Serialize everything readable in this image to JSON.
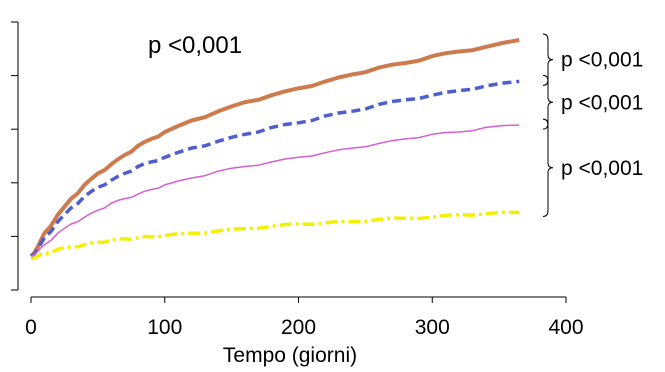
{
  "chart_data": {
    "type": "line",
    "title": "",
    "xlabel": "Tempo (giorni)",
    "ylabel": "",
    "xlim": [
      0,
      400
    ],
    "ylim": [
      0,
      1
    ],
    "x_ticks": [
      0,
      100,
      200,
      300,
      400
    ],
    "x_tick_labels": [
      "0",
      "100",
      "200",
      "300",
      "400"
    ],
    "y_ticks": [
      0,
      0.2,
      0.4,
      0.6,
      0.8,
      1.0
    ],
    "y_tick_labels_visible": false,
    "grid": false,
    "legend": "none",
    "series": [
      {
        "color": "#cd7a4d",
        "style": "solid-thick",
        "x": [
          0,
          5,
          10,
          20,
          30,
          40,
          50,
          60,
          70,
          80,
          90,
          100,
          120,
          140,
          160,
          180,
          200,
          220,
          240,
          260,
          280,
          300,
          320,
          340,
          365
        ],
        "values": [
          0.06,
          0.1,
          0.16,
          0.24,
          0.31,
          0.37,
          0.42,
          0.46,
          0.5,
          0.54,
          0.57,
          0.6,
          0.65,
          0.69,
          0.73,
          0.76,
          0.79,
          0.82,
          0.85,
          0.88,
          0.9,
          0.93,
          0.95,
          0.97,
          1.0
        ]
      },
      {
        "color": "#4e5ed0",
        "style": "dashed-thick",
        "x": [
          0,
          5,
          10,
          20,
          30,
          40,
          50,
          60,
          70,
          80,
          90,
          100,
          120,
          140,
          160,
          180,
          200,
          220,
          240,
          260,
          280,
          300,
          320,
          340,
          365
        ],
        "values": [
          0.06,
          0.09,
          0.14,
          0.21,
          0.27,
          0.32,
          0.36,
          0.39,
          0.42,
          0.45,
          0.47,
          0.49,
          0.53,
          0.56,
          0.59,
          0.62,
          0.64,
          0.67,
          0.69,
          0.72,
          0.74,
          0.76,
          0.78,
          0.8,
          0.82
        ]
      },
      {
        "color": "#d55fd0",
        "style": "solid-thin",
        "x": [
          0,
          5,
          10,
          20,
          30,
          40,
          50,
          60,
          70,
          80,
          90,
          100,
          120,
          140,
          160,
          180,
          200,
          220,
          240,
          260,
          280,
          300,
          320,
          340,
          365
        ],
        "values": [
          0.06,
          0.08,
          0.11,
          0.16,
          0.2,
          0.23,
          0.26,
          0.29,
          0.31,
          0.33,
          0.35,
          0.37,
          0.4,
          0.43,
          0.45,
          0.47,
          0.49,
          0.51,
          0.53,
          0.55,
          0.57,
          0.59,
          0.6,
          0.62,
          0.63
        ]
      },
      {
        "color": "#f5f000",
        "style": "dashdot-thick",
        "x": [
          0,
          5,
          10,
          20,
          30,
          40,
          50,
          60,
          70,
          80,
          90,
          100,
          120,
          140,
          160,
          180,
          200,
          220,
          240,
          260,
          280,
          300,
          320,
          340,
          365
        ],
        "values": [
          0.05,
          0.06,
          0.07,
          0.09,
          0.1,
          0.11,
          0.12,
          0.13,
          0.135,
          0.14,
          0.145,
          0.15,
          0.16,
          0.17,
          0.18,
          0.19,
          0.2,
          0.205,
          0.21,
          0.22,
          0.225,
          0.23,
          0.24,
          0.245,
          0.25
        ]
      }
    ],
    "annotations": [
      {
        "text": "p <0,001",
        "kind": "main"
      },
      {
        "text": "p <0,001",
        "kind": "bracket",
        "between": [
          0,
          1
        ]
      },
      {
        "text": "p <0,001",
        "kind": "bracket",
        "between": [
          1,
          2
        ]
      },
      {
        "text": "p <0,001",
        "kind": "bracket",
        "between": [
          2,
          3
        ]
      }
    ]
  }
}
